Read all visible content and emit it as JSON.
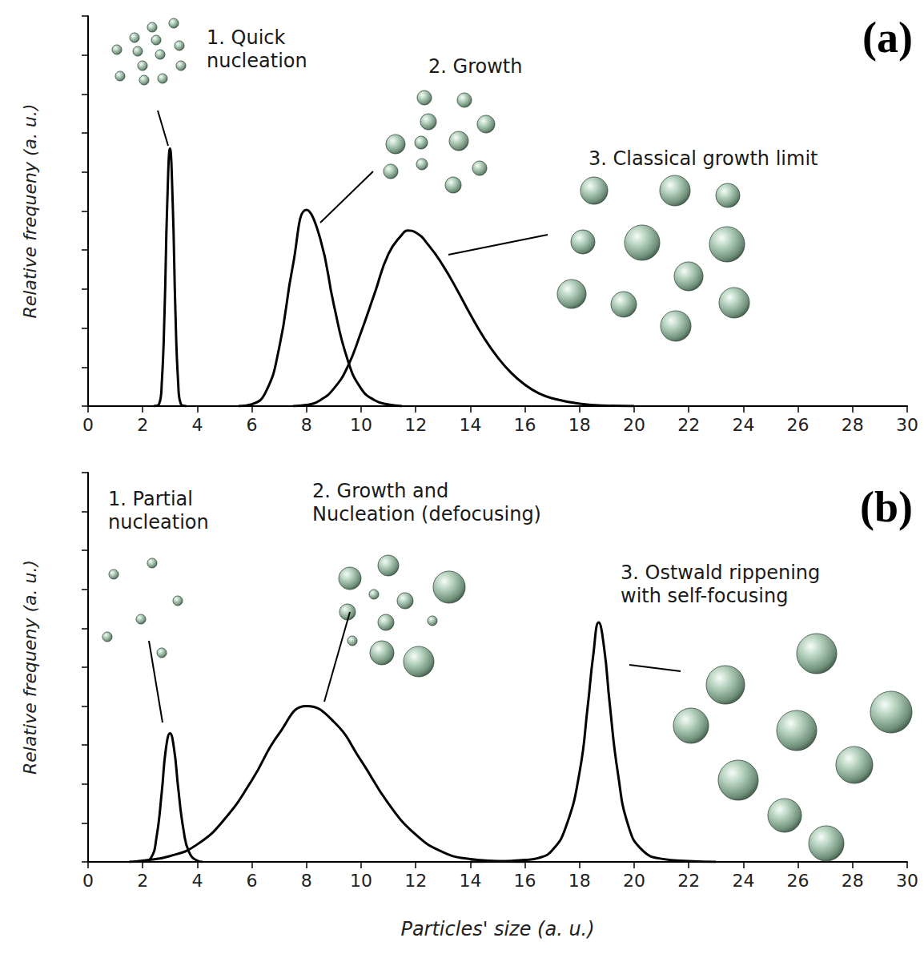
{
  "chart_data": [
    {
      "type": "line",
      "panel": "(a)",
      "ylabel": "Relative frequeny (a. u.)",
      "xlim": [
        0,
        30
      ],
      "xticks": [
        0,
        2,
        4,
        6,
        8,
        10,
        12,
        14,
        16,
        18,
        20,
        22,
        24,
        26,
        28,
        30
      ],
      "ylim": [
        0,
        10
      ],
      "yticks": [
        0,
        1,
        2,
        3,
        4,
        5,
        6,
        7,
        8,
        9,
        10
      ],
      "grid": false,
      "tick_labels": "x",
      "marker": "none",
      "line_style": "solid",
      "series": [
        {
          "annotation": [
            "1. Quick",
            "nucleation"
          ],
          "color": "#000000",
          "x": [
            2.4,
            2.6,
            2.7,
            2.8,
            2.9,
            3.0,
            3.1,
            3.2,
            3.3,
            3.4,
            3.6
          ],
          "values": [
            0,
            0.05,
            0.6,
            2.4,
            5.2,
            6.6,
            5.2,
            2.4,
            0.6,
            0.05,
            0
          ]
        },
        {
          "annotation": [
            "2. Growth"
          ],
          "color": "#000000",
          "x": [
            5.5,
            6,
            6.5,
            7,
            7.5,
            8,
            8.5,
            9,
            9.5,
            10,
            10.5,
            11,
            11.5
          ],
          "values": [
            0,
            0.05,
            0.35,
            1.5,
            3.6,
            5.03,
            4.3,
            2.6,
            1.2,
            0.45,
            0.15,
            0.04,
            0
          ]
        },
        {
          "annotation": [
            "3. Classical growth limit"
          ],
          "color": "#000000",
          "x": [
            7.5,
            8,
            8.5,
            9,
            9.5,
            10,
            10.5,
            11,
            11.5,
            11.7,
            12,
            12.5,
            13,
            13.5,
            14,
            14.5,
            15,
            15.5,
            16,
            16.5,
            17,
            18,
            19,
            20
          ],
          "values": [
            0,
            0.03,
            0.15,
            0.45,
            1.0,
            1.9,
            2.9,
            3.9,
            4.4,
            4.5,
            4.45,
            4.1,
            3.6,
            3.0,
            2.35,
            1.75,
            1.25,
            0.85,
            0.55,
            0.33,
            0.2,
            0.06,
            0.01,
            0
          ]
        }
      ]
    },
    {
      "type": "line",
      "panel": "(b)",
      "ylabel": "Relative frequeny (a. u.)",
      "xlabel": "Particles' size (a. u.)",
      "xlim": [
        0,
        30
      ],
      "xticks": [
        0,
        2,
        4,
        6,
        8,
        10,
        12,
        14,
        16,
        18,
        20,
        22,
        24,
        26,
        28,
        30
      ],
      "ylim": [
        0,
        10
      ],
      "yticks": [
        0,
        1,
        2,
        3,
        4,
        5,
        6,
        7,
        8,
        9,
        10
      ],
      "grid": false,
      "tick_labels": "x",
      "marker": "none",
      "line_style": "solid",
      "series": [
        {
          "annotation": [
            "1. Partial",
            "nucleation"
          ],
          "color": "#000000",
          "x": [
            2.0,
            2.3,
            2.5,
            2.7,
            2.85,
            3.0,
            3.15,
            3.3,
            3.5,
            3.7,
            4.0,
            4.2
          ],
          "values": [
            0,
            0.1,
            0.6,
            1.8,
            2.9,
            3.3,
            2.9,
            1.9,
            0.8,
            0.25,
            0.03,
            0
          ]
        },
        {
          "annotation": [
            "2. Growth and",
            "Nucleation (defocusing)"
          ],
          "color": "#000000",
          "x": [
            1.5,
            2,
            3,
            4,
            5,
            6,
            7,
            8,
            9,
            10,
            11,
            12,
            13,
            14,
            15,
            16
          ],
          "values": [
            0,
            0.03,
            0.15,
            0.45,
            1.1,
            2.1,
            3.3,
            4.0,
            3.6,
            2.6,
            1.5,
            0.7,
            0.25,
            0.07,
            0.02,
            0
          ]
        },
        {
          "annotation": [
            "3. Ostwald rippening",
            "with self-focusing"
          ],
          "color": "#000000",
          "x": [
            14,
            15,
            16,
            16.5,
            17,
            17.5,
            18,
            18.3,
            18.5,
            18.7,
            18.9,
            19.1,
            19.4,
            19.8,
            20.3,
            21,
            22,
            23
          ],
          "values": [
            0,
            0.01,
            0.05,
            0.1,
            0.3,
            0.9,
            2.3,
            4.0,
            5.3,
            6.15,
            5.5,
            4.1,
            2.3,
            0.9,
            0.3,
            0.08,
            0.02,
            0
          ]
        }
      ]
    }
  ]
}
